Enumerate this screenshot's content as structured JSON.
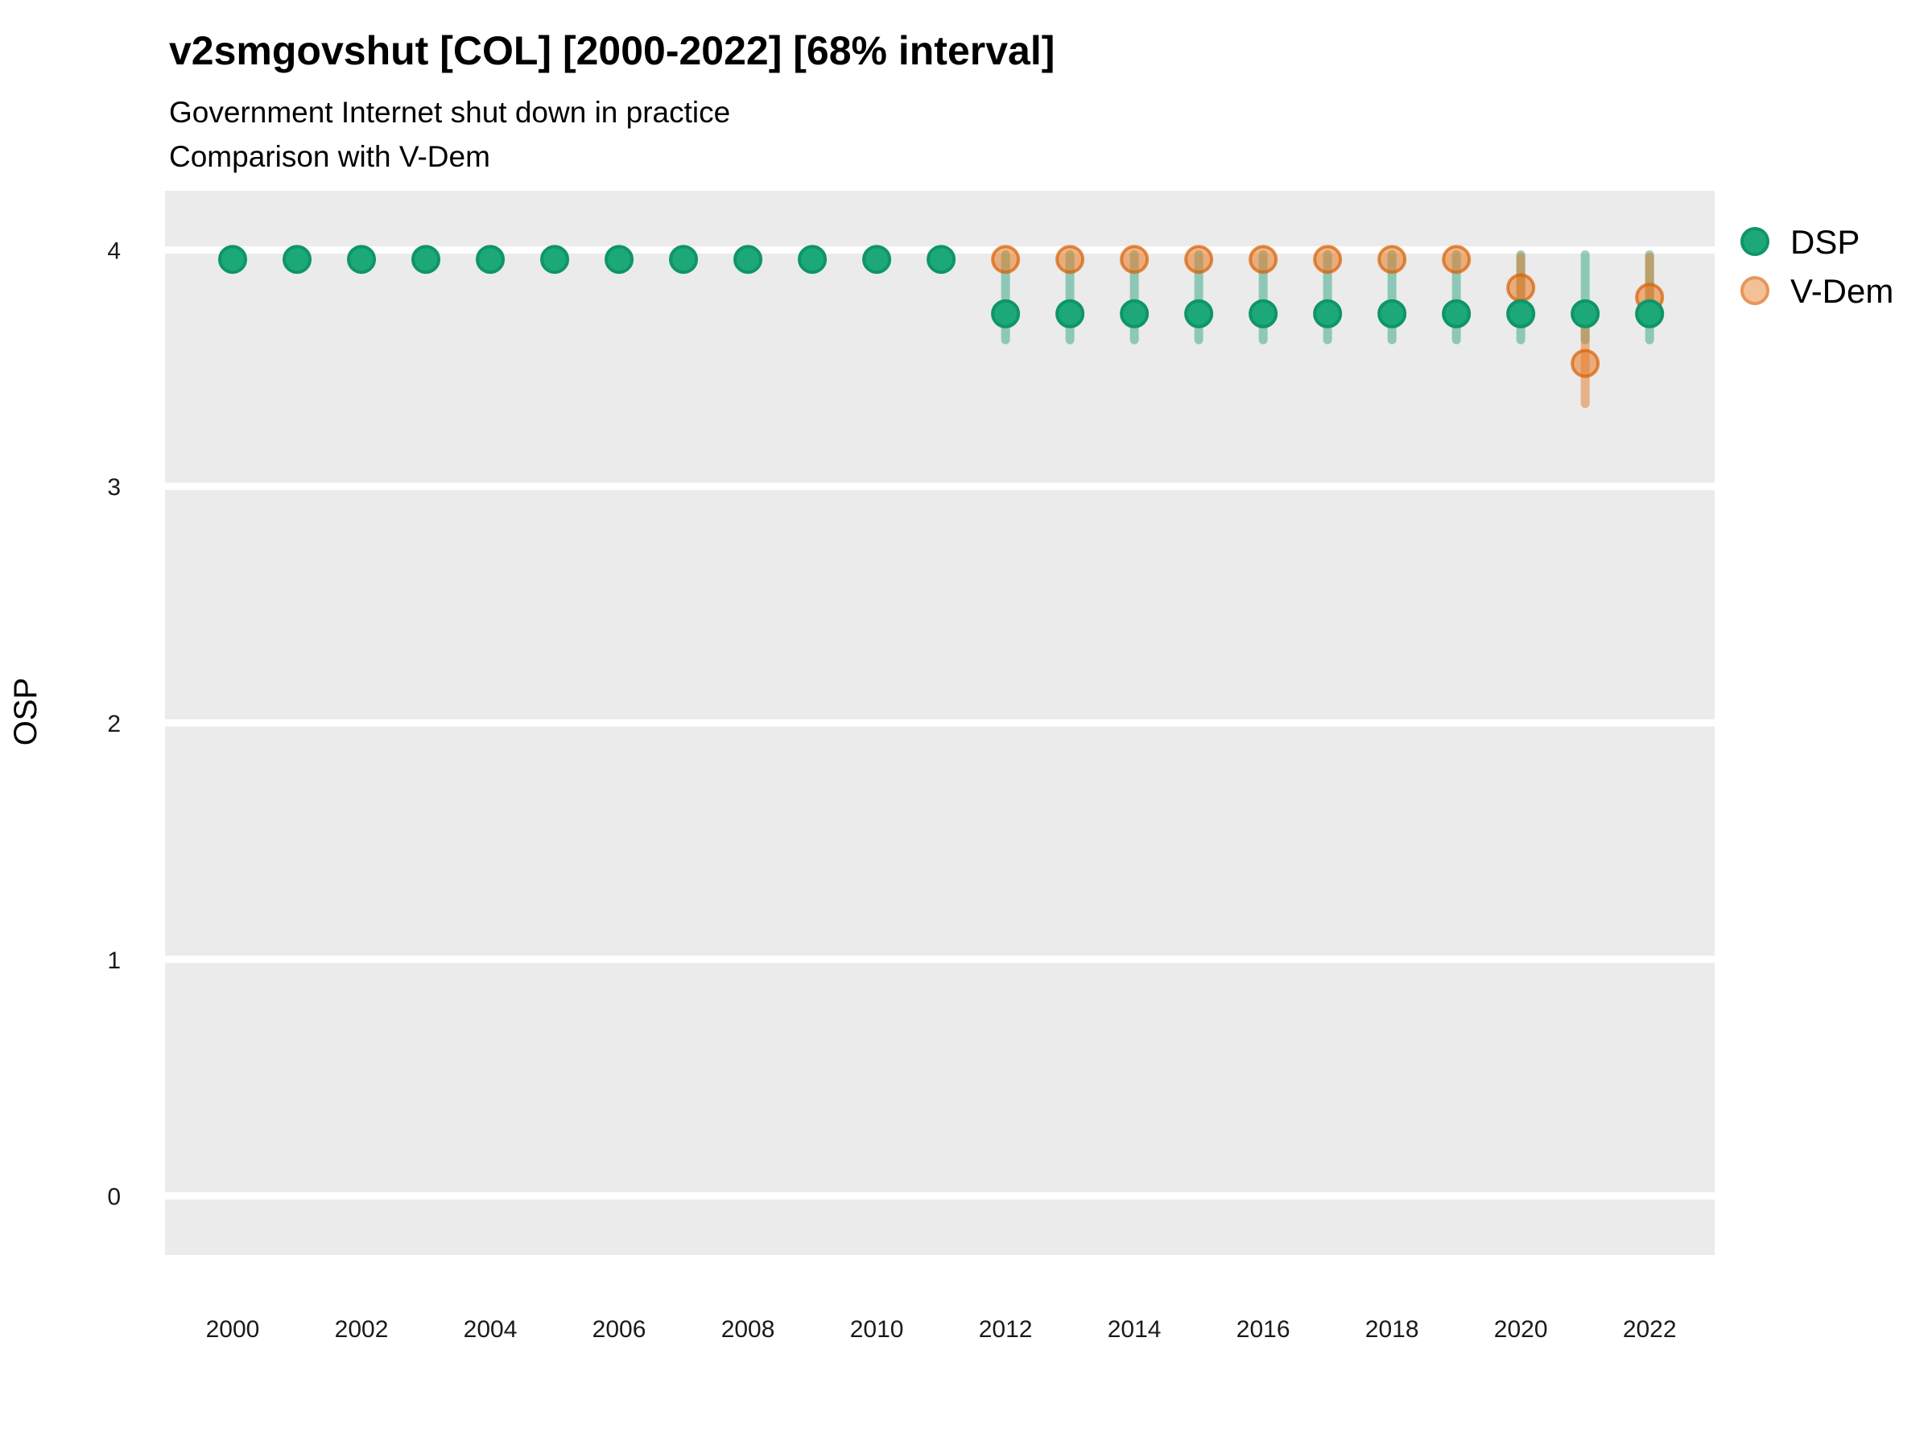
{
  "chart_data": {
    "type": "scatter",
    "title": "v2smgovshut [COL] [2000-2022] [68% interval]",
    "subtitle_line1": "Government Internet shut down in practice",
    "subtitle_line2": "Comparison with V-Dem",
    "ylabel": "OSP",
    "xlabel": "",
    "xlim": [
      1998.95,
      2023.01
    ],
    "ylim": [
      -0.25,
      4.25
    ],
    "xticks": [
      2000,
      2002,
      2004,
      2006,
      2008,
      2010,
      2012,
      2014,
      2016,
      2018,
      2020,
      2022
    ],
    "yticks": [
      0,
      1,
      2,
      3,
      4
    ],
    "grid": "horizontal-major-white-on-gray-panel",
    "legend_position": "right",
    "interval_label": "68% interval",
    "colors": {
      "panel_background": "#ebebeb",
      "grid_line": "#ffffff",
      "figure_background": "#ffffff",
      "dsp_green": "#1da878",
      "vdem_orange": "#e87823"
    },
    "series": [
      {
        "name": "DSP",
        "point_fill": "#1da878",
        "point_stroke": "#0e9568",
        "bar_color": "rgba(27,158,119,0.45)",
        "legend_fill": "#1da878",
        "legend_stroke": "#0e9568",
        "points": [
          {
            "year": 2000,
            "value": 3.96,
            "lo": 3.96,
            "hi": 3.96
          },
          {
            "year": 2001,
            "value": 3.96,
            "lo": 3.96,
            "hi": 3.96
          },
          {
            "year": 2002,
            "value": 3.96,
            "lo": 3.96,
            "hi": 3.96
          },
          {
            "year": 2003,
            "value": 3.96,
            "lo": 3.96,
            "hi": 3.96
          },
          {
            "year": 2004,
            "value": 3.96,
            "lo": 3.96,
            "hi": 3.96
          },
          {
            "year": 2005,
            "value": 3.96,
            "lo": 3.96,
            "hi": 3.96
          },
          {
            "year": 2006,
            "value": 3.96,
            "lo": 3.96,
            "hi": 3.96
          },
          {
            "year": 2007,
            "value": 3.96,
            "lo": 3.96,
            "hi": 3.96
          },
          {
            "year": 2008,
            "value": 3.96,
            "lo": 3.96,
            "hi": 3.96
          },
          {
            "year": 2009,
            "value": 3.96,
            "lo": 3.96,
            "hi": 3.96
          },
          {
            "year": 2010,
            "value": 3.96,
            "lo": 3.96,
            "hi": 3.96
          },
          {
            "year": 2011,
            "value": 3.96,
            "lo": 3.96,
            "hi": 3.96
          },
          {
            "year": 2012,
            "value": 3.73,
            "lo": 3.62,
            "hi": 3.98
          },
          {
            "year": 2013,
            "value": 3.73,
            "lo": 3.62,
            "hi": 3.98
          },
          {
            "year": 2014,
            "value": 3.73,
            "lo": 3.62,
            "hi": 3.98
          },
          {
            "year": 2015,
            "value": 3.73,
            "lo": 3.62,
            "hi": 3.98
          },
          {
            "year": 2016,
            "value": 3.73,
            "lo": 3.62,
            "hi": 3.98
          },
          {
            "year": 2017,
            "value": 3.73,
            "lo": 3.62,
            "hi": 3.98
          },
          {
            "year": 2018,
            "value": 3.73,
            "lo": 3.62,
            "hi": 3.98
          },
          {
            "year": 2019,
            "value": 3.73,
            "lo": 3.62,
            "hi": 3.98
          },
          {
            "year": 2020,
            "value": 3.73,
            "lo": 3.62,
            "hi": 3.98
          },
          {
            "year": 2021,
            "value": 3.73,
            "lo": 3.62,
            "hi": 3.98
          },
          {
            "year": 2022,
            "value": 3.73,
            "lo": 3.62,
            "hi": 3.98
          }
        ]
      },
      {
        "name": "V-Dem",
        "point_fill": "rgba(232,120,35,0.55)",
        "point_stroke": "rgba(217,95,2,0.7)",
        "bar_color": "rgba(232,120,35,0.5)",
        "legend_fill": "#f4c197",
        "legend_stroke": "#e6965c",
        "points": [
          {
            "year": 2012,
            "value": 3.96,
            "lo": 3.96,
            "hi": 3.96
          },
          {
            "year": 2013,
            "value": 3.96,
            "lo": 3.96,
            "hi": 3.96
          },
          {
            "year": 2014,
            "value": 3.96,
            "lo": 3.96,
            "hi": 3.96
          },
          {
            "year": 2015,
            "value": 3.96,
            "lo": 3.96,
            "hi": 3.96
          },
          {
            "year": 2016,
            "value": 3.96,
            "lo": 3.96,
            "hi": 3.96
          },
          {
            "year": 2017,
            "value": 3.96,
            "lo": 3.96,
            "hi": 3.96
          },
          {
            "year": 2018,
            "value": 3.96,
            "lo": 3.96,
            "hi": 3.96
          },
          {
            "year": 2019,
            "value": 3.96,
            "lo": 3.96,
            "hi": 3.96
          },
          {
            "year": 2020,
            "value": 3.84,
            "lo": 3.7,
            "hi": 3.97
          },
          {
            "year": 2021,
            "value": 3.52,
            "lo": 3.35,
            "hi": 3.72
          },
          {
            "year": 2022,
            "value": 3.8,
            "lo": 3.7,
            "hi": 3.97
          }
        ]
      }
    ]
  },
  "layout_text": {
    "legend_items": [
      "DSP",
      "V-Dem"
    ]
  }
}
